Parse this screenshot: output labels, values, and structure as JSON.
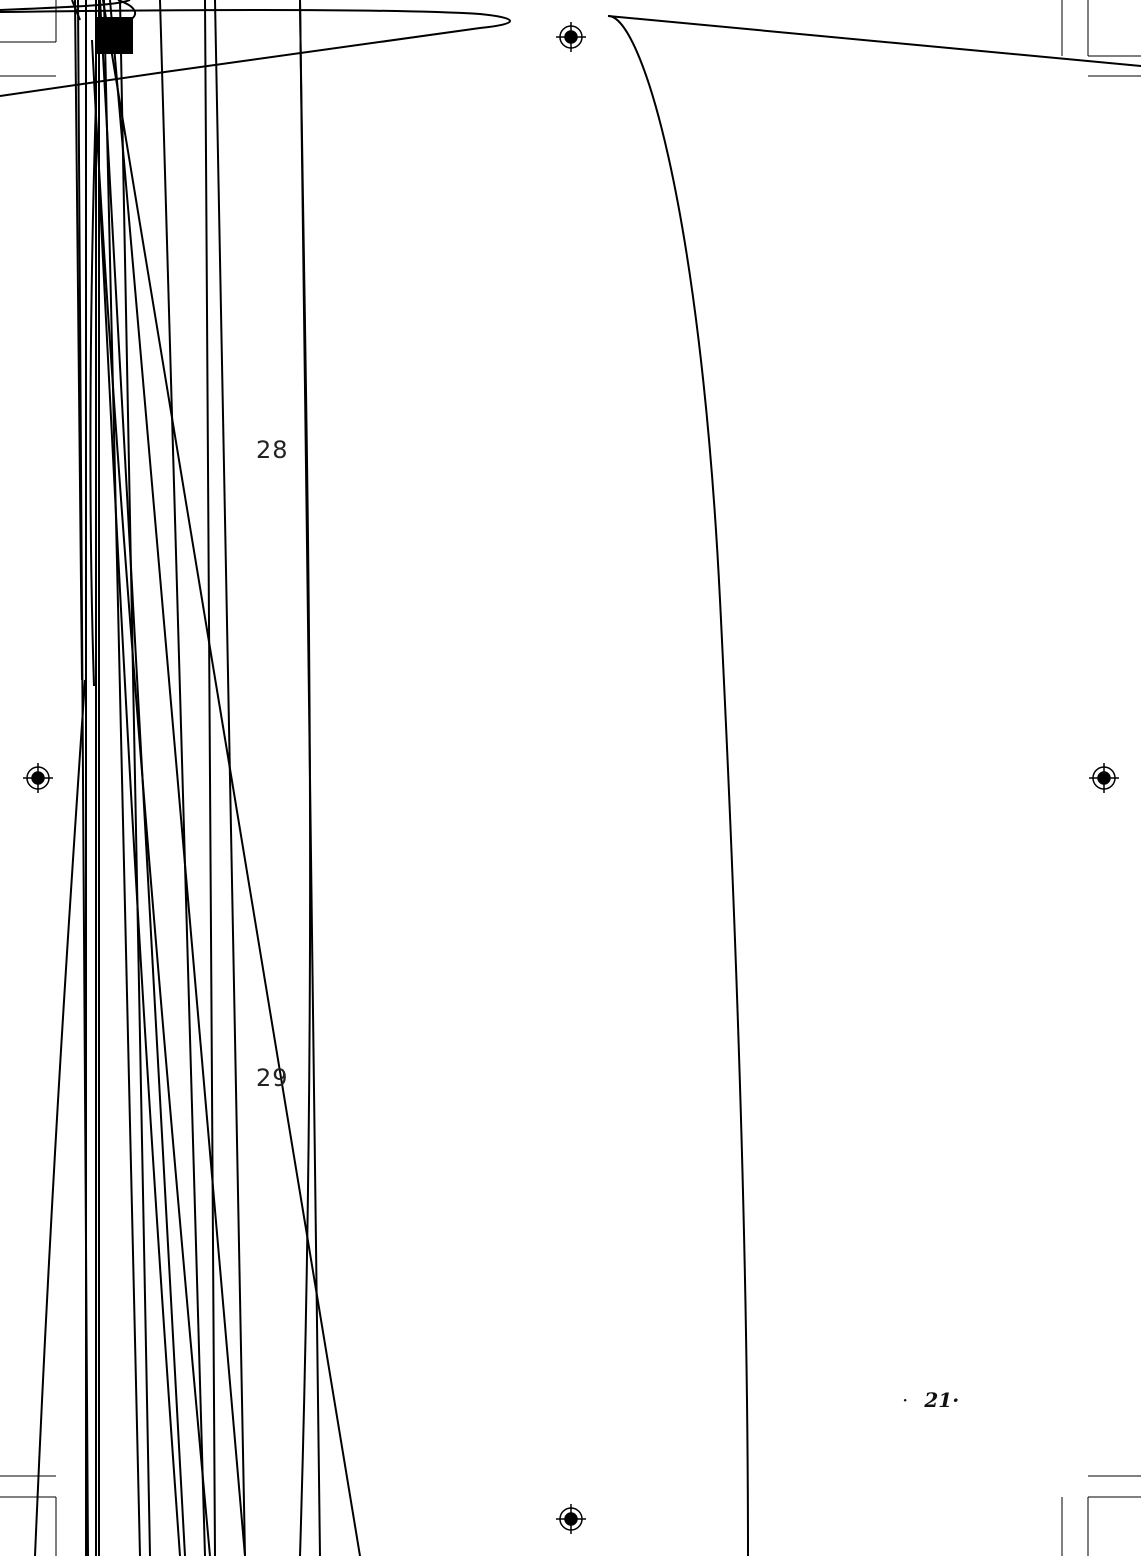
{
  "page": {
    "figure_numbers": [
      "28",
      "29"
    ],
    "folio": {
      "prefix": "·",
      "number": "21·"
    }
  },
  "colors": {
    "ink": "#000000",
    "background": "#ffffff"
  },
  "marks": {
    "registration_icon": "registration-target-icon",
    "crop_mark_icon": "crop-mark-icon"
  }
}
